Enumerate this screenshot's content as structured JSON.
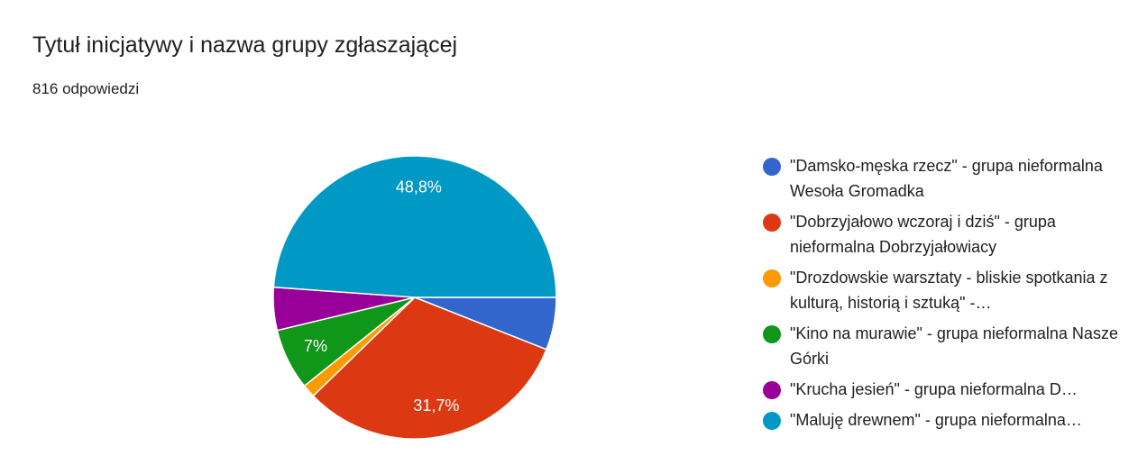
{
  "header": {
    "title": "Tytuł inicjatywy i nazwa grupy zgłaszającej",
    "response_count": "816 odpowiedzi"
  },
  "chart_data": {
    "type": "pie",
    "categories": [
      "\"Damsko-męska rzecz\" - grupa nieformalna Wesoła Gromadka",
      "\"Dobrzyjałowo wczoraj i dziś\" - grupa nieformalna Dobrzyjałowiacy",
      "\"Drozdowskie warsztaty - bliskie spotkania z kulturą, historią i sztuką\" -…",
      "\"Kino na murawie\" - grupa nieformalna Nasze Górki",
      "\"Krucha jesień\" - grupa nieformalna D…",
      "\"Maluję drewnem\" - grupa nieformalna…"
    ],
    "values": [
      6.0,
      31.7,
      1.5,
      7.0,
      4.9,
      48.8
    ],
    "slice_labels": [
      "",
      "31,7%",
      "",
      "7%",
      "",
      "48,8%"
    ],
    "colors": [
      "#3366cc",
      "#dc3912",
      "#ff9900",
      "#109618",
      "#990099",
      "#0099c6"
    ],
    "legend_position": "right",
    "legend_one_line": [
      false,
      false,
      false,
      false,
      true,
      true
    ]
  }
}
